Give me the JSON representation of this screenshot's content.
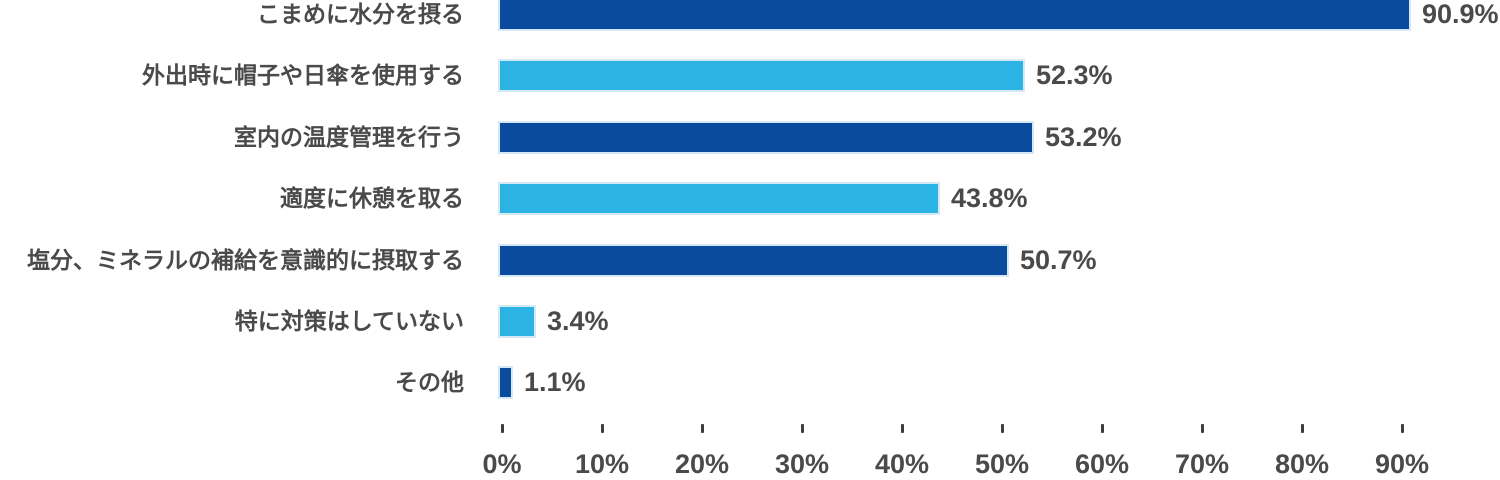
{
  "chart_data": {
    "type": "bar",
    "orientation": "horizontal",
    "title": "",
    "xlabel": "",
    "ylabel": "",
    "categories": [
      "こまめに水分を摂る",
      "外出時に帽子や日傘を使用する",
      "室内の温度管理を行う",
      "適度に休憩を取る",
      "塩分、ミネラルの補給を意識的に摂取する",
      "特に対策はしていない",
      "その他"
    ],
    "values": [
      90.9,
      52.3,
      53.2,
      43.8,
      50.7,
      3.4,
      1.1
    ],
    "value_labels": [
      "90.9%",
      "52.3%",
      "53.2%",
      "43.8%",
      "50.7%",
      "3.4%",
      "1.1%"
    ],
    "bar_colors": [
      "#0b4b9e",
      "#2ab3e3",
      "#0b4b9e",
      "#2ab3e3",
      "#0b4b9e",
      "#2ab3e3",
      "#0b4b9e"
    ],
    "x_ticks": [
      "0%",
      "10%",
      "20%",
      "30%",
      "40%",
      "50%",
      "60%",
      "70%",
      "80%",
      "90%"
    ],
    "x_tick_values": [
      0,
      10,
      20,
      30,
      40,
      50,
      60,
      70,
      80,
      90
    ],
    "xlim": [
      0,
      100
    ],
    "grid": false,
    "legend": null,
    "palette": {
      "dark_blue": "#0b4b9e",
      "light_blue": "#2ab3e3",
      "text_color": "#4a4a4a",
      "tick_color": "#3d3d3d",
      "background": "#ffffff"
    }
  }
}
